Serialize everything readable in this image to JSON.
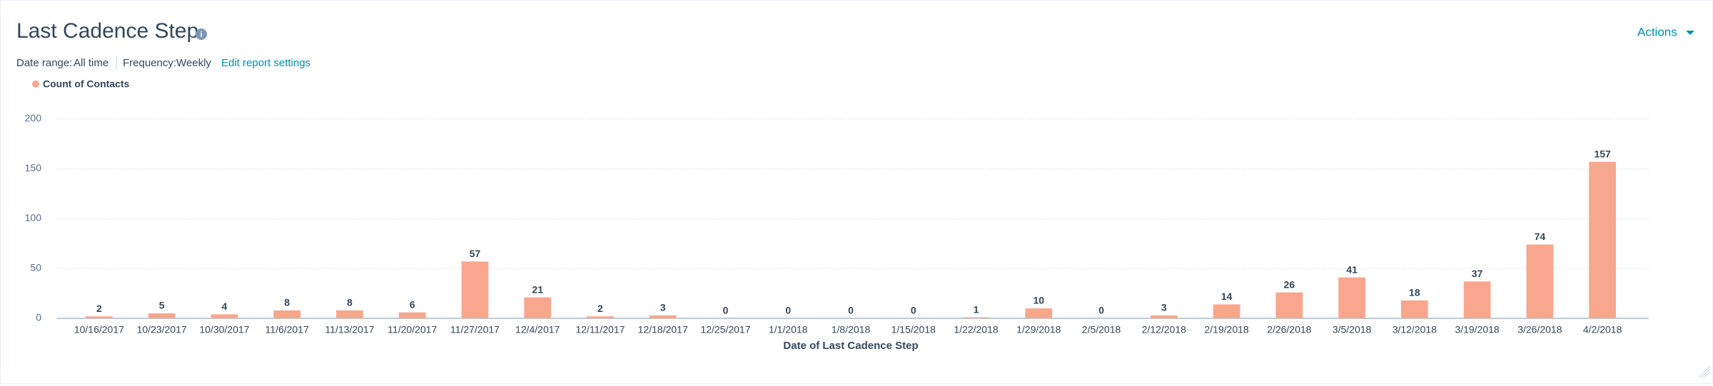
{
  "header": {
    "date_range_label": "Date range:",
    "date_range_value": "All time",
    "frequency_label": "Frequency:",
    "frequency_value": "Weekly",
    "edit_link": "Edit report settings",
    "actions": "Actions"
  },
  "chart_data": {
    "type": "bar",
    "title": "Last Cadence Step",
    "x_label": "Date of Last Cadence Step",
    "categories": [
      "10/16/2017",
      "10/23/2017",
      "10/30/2017",
      "11/6/2017",
      "11/13/2017",
      "11/20/2017",
      "11/27/2017",
      "12/4/2017",
      "12/11/2017",
      "12/18/2017",
      "12/25/2017",
      "1/1/2018",
      "1/8/2018",
      "1/15/2018",
      "1/22/2018",
      "1/29/2018",
      "2/5/2018",
      "2/12/2018",
      "2/19/2018",
      "2/26/2018",
      "3/5/2018",
      "3/12/2018",
      "3/19/2018",
      "3/26/2018",
      "4/2/2018"
    ],
    "series": [
      {
        "name": "Count of Contacts",
        "color": "#f9a68f",
        "values": [
          2,
          5,
          4,
          8,
          8,
          6,
          57,
          21,
          2,
          3,
          0,
          0,
          0,
          0,
          1,
          10,
          0,
          3,
          14,
          26,
          41,
          18,
          37,
          74,
          157
        ]
      }
    ],
    "ylim": [
      0,
      200
    ],
    "yticks": [
      0,
      50,
      100,
      150,
      200
    ],
    "grid": true,
    "legend": "top-left"
  }
}
